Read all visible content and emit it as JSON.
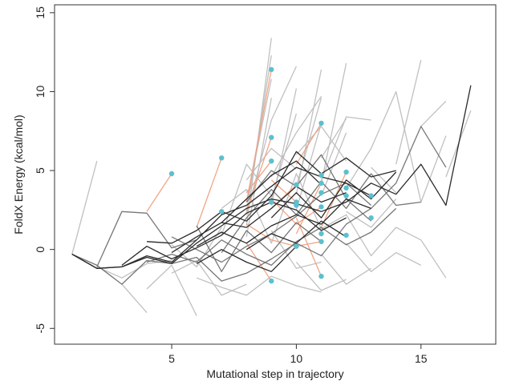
{
  "chart_data": {
    "type": "line",
    "title": "",
    "xlabel": "Mutational step in trajectory",
    "ylabel": "FoldX Energy (kcal/mol)",
    "xlim": [
      0.3,
      18.0
    ],
    "ylim": [
      -6.0,
      15.5
    ],
    "x_ticks": [
      5,
      10,
      15
    ],
    "y_ticks": [
      -5,
      0,
      5,
      10,
      15
    ],
    "x_tick_labels": [
      "5",
      "10",
      "15"
    ],
    "y_tick_labels": [
      "-5",
      "0",
      "5",
      "10",
      "15"
    ],
    "grid": false,
    "legend": "none",
    "colors": {
      "dark": "#2a2a2a",
      "mid": "#707070",
      "light": "#bdbdbd",
      "orange": "#f0a080",
      "point": "#5bc0cf",
      "axis": "#333333"
    },
    "series": [
      {
        "shade": "dark",
        "x": [
          1,
          2,
          3,
          4,
          5,
          6,
          7,
          8,
          9,
          10,
          11,
          12,
          13
        ],
        "y": [
          -0.3,
          -1.2,
          -1.1,
          -0.4,
          -0.8,
          0.6,
          2.2,
          2.8,
          4.0,
          5.2,
          4.6,
          4.2,
          3.4
        ]
      },
      {
        "shade": "dark",
        "x": [
          1,
          2,
          3,
          4,
          5,
          6,
          7,
          8,
          9,
          10,
          11,
          12,
          13,
          14,
          15,
          16,
          17
        ],
        "y": [
          -0.3,
          -1.2,
          -1.1,
          -0.5,
          -0.9,
          0.4,
          1.5,
          2.6,
          3.2,
          2.9,
          2.4,
          3.0,
          4.2,
          3.5,
          5.4,
          2.8,
          10.4
        ]
      },
      {
        "shade": "dark",
        "x": [
          3,
          4,
          5,
          6,
          7,
          8,
          9,
          10,
          11,
          12
        ],
        "y": [
          -1.0,
          0.2,
          -0.6,
          0.1,
          0.9,
          2.3,
          3.0,
          2.5,
          1.2,
          2.0
        ]
      },
      {
        "shade": "dark",
        "x": [
          4,
          5,
          6,
          7,
          8,
          9,
          10,
          11,
          12,
          13,
          14
        ],
        "y": [
          0.5,
          0.4,
          1.2,
          2.4,
          1.8,
          3.4,
          6.2,
          4.8,
          5.8,
          4.6,
          5.0
        ]
      },
      {
        "shade": "dark",
        "x": [
          5,
          6,
          7,
          8,
          9,
          10,
          11,
          12
        ],
        "y": [
          -0.2,
          0.8,
          1.7,
          1.4,
          2.6,
          4.0,
          3.0,
          3.6
        ]
      },
      {
        "shade": "dark",
        "x": [
          6,
          7,
          8,
          9,
          10,
          11,
          12,
          13
        ],
        "y": [
          0.2,
          1.1,
          0.4,
          1.5,
          2.2,
          1.6,
          3.2,
          2.6
        ]
      },
      {
        "shade": "dark",
        "x": [
          7,
          8,
          9,
          10,
          11
        ],
        "y": [
          1.7,
          3.2,
          4.7,
          5.6,
          4.1
        ]
      },
      {
        "shade": "dark",
        "x": [
          8,
          9,
          10,
          11,
          12
        ],
        "y": [
          0.0,
          1.0,
          0.4,
          1.8,
          0.8
        ]
      },
      {
        "shade": "dark",
        "x": [
          6,
          7,
          8,
          9,
          10
        ],
        "y": [
          -0.9,
          0.0,
          -0.8,
          -1.4,
          0.2
        ]
      },
      {
        "shade": "dark",
        "x": [
          9,
          10,
          11,
          12,
          13,
          14
        ],
        "y": [
          2.0,
          3.6,
          2.0,
          4.4,
          3.2,
          4.9
        ]
      },
      {
        "shade": "mid",
        "x": [
          1,
          2,
          3,
          4,
          5,
          6,
          7,
          8,
          9,
          10,
          11,
          12,
          13,
          14,
          15,
          16
        ],
        "y": [
          -0.3,
          -1.0,
          -2.2,
          -0.7,
          -0.9,
          -0.5,
          -2.0,
          -1.5,
          -0.6,
          0.4,
          -0.4,
          1.6,
          2.6,
          4.2,
          7.8,
          5.2
        ]
      },
      {
        "shade": "mid",
        "x": [
          2,
          3,
          4,
          5,
          6
        ],
        "y": [
          -1.1,
          2.4,
          2.3,
          0.1,
          0.6
        ]
      },
      {
        "shade": "mid",
        "x": [
          4,
          5,
          6,
          7,
          8,
          9,
          10,
          11,
          12,
          13,
          14
        ],
        "y": [
          -0.8,
          -0.3,
          -0.8,
          0.6,
          -0.3,
          -1.0,
          0.5,
          1.4,
          0.3,
          1.1,
          2.6
        ]
      },
      {
        "shade": "mid",
        "x": [
          5,
          6,
          7,
          8,
          9,
          10,
          11,
          12,
          13
        ],
        "y": [
          0.8,
          0.0,
          -0.8,
          0.2,
          1.0,
          2.1,
          3.5,
          4.2,
          2.8
        ]
      },
      {
        "shade": "mid",
        "x": [
          7,
          8,
          9,
          10,
          11,
          12,
          13,
          14,
          15
        ],
        "y": [
          -0.2,
          2.0,
          3.8,
          2.2,
          4.3,
          2.6,
          4.8,
          2.8,
          3.0
        ]
      },
      {
        "shade": "mid",
        "x": [
          8,
          9,
          10,
          11,
          12,
          13
        ],
        "y": [
          3.0,
          5.0,
          4.0,
          6.0,
          3.2,
          1.8
        ]
      },
      {
        "shade": "mid",
        "x": [
          6,
          7,
          8,
          9,
          10,
          11
        ],
        "y": [
          1.5,
          -1.4,
          1.2,
          -0.2,
          1.7,
          0.5
        ]
      },
      {
        "shade": "light",
        "x": [
          1,
          2
        ],
        "y": [
          -0.3,
          5.6
        ]
      },
      {
        "shade": "light",
        "x": [
          2,
          3,
          4,
          5
        ],
        "y": [
          -1.1,
          -1.8,
          -0.9,
          -0.7
        ]
      },
      {
        "shade": "light",
        "x": [
          3,
          4
        ],
        "y": [
          -2.2,
          -4.0
        ]
      },
      {
        "shade": "light",
        "x": [
          4,
          5,
          6
        ],
        "y": [
          -2.5,
          -1.0,
          -4.2
        ]
      },
      {
        "shade": "light",
        "x": [
          5,
          6,
          7,
          8
        ],
        "y": [
          -1.5,
          -0.7,
          -2.9,
          -2.2
        ]
      },
      {
        "shade": "light",
        "x": [
          6,
          7,
          8,
          9,
          10,
          11
        ],
        "y": [
          -1.8,
          -2.4,
          -2.9,
          -1.7,
          -2.3,
          -2.7
        ]
      },
      {
        "shade": "light",
        "x": [
          7,
          8,
          9,
          10,
          11,
          12,
          13,
          14,
          15,
          16
        ],
        "y": [
          2.6,
          3.8,
          0.4,
          4.8,
          1.3,
          2.2,
          -0.4,
          1.4,
          0.6,
          -1.8
        ]
      },
      {
        "shade": "light",
        "x": [
          8,
          9
        ],
        "y": [
          2.4,
          12.3
        ]
      },
      {
        "shade": "light",
        "x": [
          8,
          9
        ],
        "y": [
          1.5,
          13.4
        ]
      },
      {
        "shade": "light",
        "x": [
          8,
          9
        ],
        "y": [
          3.0,
          10.8
        ]
      },
      {
        "shade": "light",
        "x": [
          8,
          9
        ],
        "y": [
          0.8,
          9.6
        ]
      },
      {
        "shade": "light",
        "x": [
          8,
          9,
          10
        ],
        "y": [
          2.2,
          8.2,
          11.6
        ]
      },
      {
        "shade": "light",
        "x": [
          9,
          10
        ],
        "y": [
          3.2,
          8.6
        ]
      },
      {
        "shade": "light",
        "x": [
          9,
          10
        ],
        "y": [
          2.8,
          10.2
        ]
      },
      {
        "shade": "light",
        "x": [
          9,
          10,
          11
        ],
        "y": [
          4.6,
          7.4,
          9.7
        ]
      },
      {
        "shade": "light",
        "x": [
          10,
          11
        ],
        "y": [
          3.5,
          11.4
        ]
      },
      {
        "shade": "light",
        "x": [
          10,
          11
        ],
        "y": [
          4.0,
          9.6
        ]
      },
      {
        "shade": "light",
        "x": [
          10,
          11
        ],
        "y": [
          2.5,
          8.0
        ]
      },
      {
        "shade": "light",
        "x": [
          11,
          12
        ],
        "y": [
          4.2,
          11.8
        ]
      },
      {
        "shade": "light",
        "x": [
          11,
          12
        ],
        "y": [
          3.4,
          7.4
        ]
      },
      {
        "shade": "light",
        "x": [
          11,
          12,
          13
        ],
        "y": [
          4.4,
          8.4,
          8.2
        ]
      },
      {
        "shade": "light",
        "x": [
          12,
          13
        ],
        "y": [
          3.9,
          6.4
        ]
      },
      {
        "shade": "light",
        "x": [
          13,
          14,
          15,
          16
        ],
        "y": [
          6.4,
          10.0,
          3.0,
          7.2
        ]
      },
      {
        "shade": "light",
        "x": [
          14,
          15
        ],
        "y": [
          5.4,
          12.0
        ]
      },
      {
        "shade": "light",
        "x": [
          15,
          16
        ],
        "y": [
          7.8,
          9.4
        ]
      },
      {
        "shade": "light",
        "x": [
          16,
          17
        ],
        "y": [
          4.6,
          8.8
        ]
      },
      {
        "shade": "light",
        "x": [
          9,
          10,
          11
        ],
        "y": [
          1.2,
          -1.2,
          -0.8
        ]
      },
      {
        "shade": "light",
        "x": [
          10,
          11,
          12
        ],
        "y": [
          -0.8,
          -2.6,
          -1.9
        ]
      },
      {
        "shade": "light",
        "x": [
          11,
          12,
          13
        ],
        "y": [
          -0.3,
          -2.2,
          -1.2
        ]
      },
      {
        "shade": "light",
        "x": [
          12,
          13,
          14,
          15
        ],
        "y": [
          0.4,
          -1.4,
          -0.2,
          -1.0
        ]
      },
      {
        "shade": "light",
        "x": [
          12,
          13,
          14
        ],
        "y": [
          2.4,
          1.4,
          3.2
        ]
      },
      {
        "shade": "light",
        "x": [
          13,
          14
        ],
        "y": [
          5.2,
          3.6
        ]
      },
      {
        "shade": "light",
        "x": [
          8,
          9,
          10
        ],
        "y": [
          4.4,
          6.4,
          5.1
        ]
      },
      {
        "shade": "light",
        "x": [
          7,
          8,
          9
        ],
        "y": [
          0.9,
          5.4,
          3.4
        ]
      },
      {
        "shade": "light",
        "x": [
          5,
          6,
          7
        ],
        "y": [
          0.3,
          -1.1,
          1.4
        ]
      },
      {
        "shade": "light",
        "x": [
          11,
          12
        ],
        "y": [
          5.8,
          8.3
        ]
      },
      {
        "shade": "light",
        "x": [
          10,
          11,
          12
        ],
        "y": [
          6.0,
          7.8,
          5.6
        ]
      },
      {
        "shade": "orange",
        "x": [
          4,
          5
        ],
        "y": [
          2.4,
          4.8
        ]
      },
      {
        "shade": "orange",
        "x": [
          6,
          7
        ],
        "y": [
          1.4,
          5.8
        ]
      },
      {
        "shade": "orange",
        "x": [
          8,
          9
        ],
        "y": [
          3.0,
          11.4
        ]
      },
      {
        "shade": "orange",
        "x": [
          8,
          9
        ],
        "y": [
          2.4,
          7.1
        ]
      },
      {
        "shade": "orange",
        "x": [
          8,
          9
        ],
        "y": [
          3.6,
          5.6
        ]
      },
      {
        "shade": "orange",
        "x": [
          8,
          9
        ],
        "y": [
          0.4,
          -2.0
        ]
      },
      {
        "shade": "orange",
        "x": [
          9,
          10
        ],
        "y": [
          2.6,
          4.1
        ]
      },
      {
        "shade": "orange",
        "x": [
          9,
          10
        ],
        "y": [
          4.4,
          3.0
        ]
      },
      {
        "shade": "orange",
        "x": [
          10,
          11
        ],
        "y": [
          1.0,
          4.2
        ]
      },
      {
        "shade": "orange",
        "x": [
          10,
          11
        ],
        "y": [
          5.4,
          8.0
        ]
      },
      {
        "shade": "orange",
        "x": [
          10,
          11
        ],
        "y": [
          2.0,
          -1.7
        ]
      },
      {
        "shade": "orange",
        "x": [
          11,
          12
        ],
        "y": [
          1.4,
          4.9
        ]
      },
      {
        "shade": "orange",
        "x": [
          8,
          9,
          10,
          11
        ],
        "y": [
          1.6,
          0.6,
          0.2,
          0.5
        ]
      },
      {
        "shade": "orange",
        "x": [
          9,
          10,
          11
        ],
        "y": [
          3.2,
          1.6,
          2.7
        ]
      }
    ],
    "endpoints": [
      {
        "x": 5,
        "y": 4.8
      },
      {
        "x": 7,
        "y": 5.8
      },
      {
        "x": 7,
        "y": 2.4
      },
      {
        "x": 9,
        "y": 11.4
      },
      {
        "x": 9,
        "y": 7.1
      },
      {
        "x": 9,
        "y": 5.6
      },
      {
        "x": 9,
        "y": 3.0
      },
      {
        "x": 9,
        "y": -2.0
      },
      {
        "x": 10,
        "y": 4.1
      },
      {
        "x": 10,
        "y": 3.0
      },
      {
        "x": 10,
        "y": 2.8
      },
      {
        "x": 10,
        "y": 0.2
      },
      {
        "x": 11,
        "y": 8.0
      },
      {
        "x": 11,
        "y": 4.7
      },
      {
        "x": 11,
        "y": 4.2
      },
      {
        "x": 11,
        "y": 3.6
      },
      {
        "x": 11,
        "y": 2.7
      },
      {
        "x": 11,
        "y": 1.0
      },
      {
        "x": 11,
        "y": 0.5
      },
      {
        "x": 11,
        "y": -1.7
      },
      {
        "x": 12,
        "y": 4.9
      },
      {
        "x": 12,
        "y": 3.9
      },
      {
        "x": 12,
        "y": 3.4
      },
      {
        "x": 12,
        "y": 0.9
      },
      {
        "x": 13,
        "y": 3.4
      },
      {
        "x": 13,
        "y": 2.0
      }
    ]
  }
}
